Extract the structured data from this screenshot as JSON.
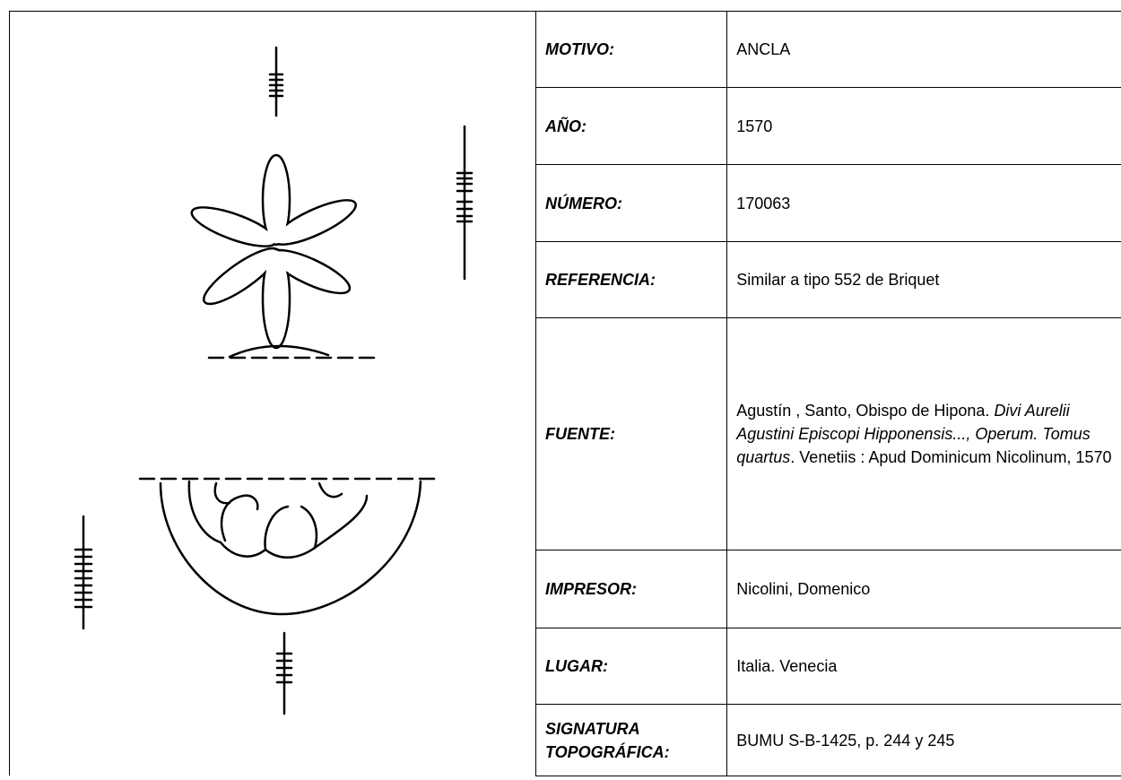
{
  "rows": [
    {
      "label": "MOTIVO:",
      "value": "ANCLA"
    },
    {
      "label": "AÑO:",
      "value": "1570"
    },
    {
      "label": "NÚMERO:",
      "value": "170063"
    },
    {
      "label": "REFERENCIA:",
      "value": "Similar a tipo 552 de Briquet"
    },
    {
      "label": "FUENTE:",
      "segments": [
        {
          "text": "Agustín , Santo, Obispo de Hipona. ",
          "italic": false
        },
        {
          "text": "Divi Aurelii Agustini Episcopi Hipponensis..., Operum. Tomus quartus",
          "italic": true
        },
        {
          "text": ".  Venetiis : Apud Dominicum Nicolinum, 1570",
          "italic": false
        }
      ]
    },
    {
      "label": "IMPRESOR:",
      "value": "Nicolini, Domenico"
    },
    {
      "label": "LUGAR:",
      "value": "Italia. Venecia"
    },
    {
      "label": "SIGNATURA TOPOGRÁFICA:",
      "value": "BUMU S-B-1425, p. 244 y 245"
    }
  ]
}
